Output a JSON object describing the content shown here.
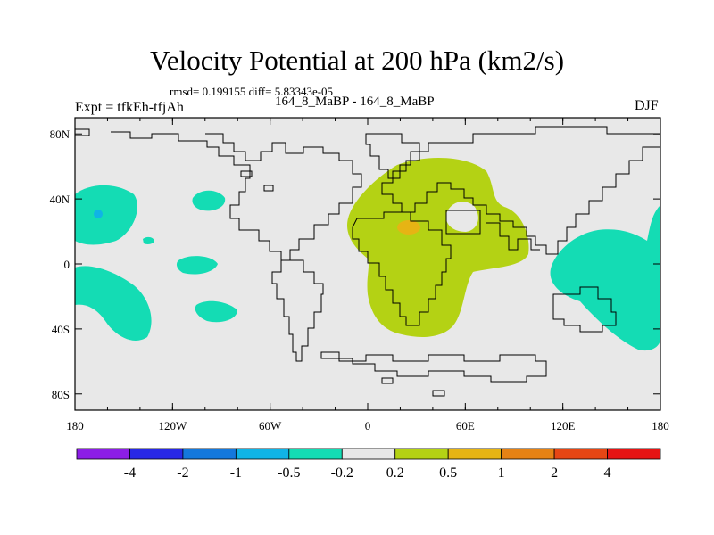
{
  "title": "Velocity Potential at 200 hPa (km2/s)",
  "stats": "rmsd= 0.199155 diff= 5.83343e-05",
  "left_label": "Expt = tfkEh-tfjAh",
  "center_label": "164_8_MaBP - 164_8_MaBP",
  "right_label": "DJF",
  "x_ticks": [
    "180",
    "120W",
    "60W",
    "0",
    "60E",
    "120E",
    "180"
  ],
  "y_ticks": [
    "80N",
    "40N",
    "0",
    "40S",
    "80S"
  ],
  "colorbar": {
    "colors": [
      "#8c1ee6",
      "#2828e6",
      "#1478dc",
      "#10b4e6",
      "#14dcb4",
      "#e8e8e8",
      "#b4d214",
      "#e6b414",
      "#e68214",
      "#e64614",
      "#e61414"
    ],
    "labels": [
      "-4",
      "-2",
      "-1",
      "-0.5",
      "-0.2",
      "0.2",
      "0.5",
      "1",
      "2",
      "4"
    ]
  },
  "colors": {
    "background": "#e8e8e8",
    "negative_fill": "#14dcb4",
    "deep_negative_fill": "#10b4e6",
    "positive_fill": "#b4d214",
    "strong_positive_fill": "#e6b414"
  }
}
